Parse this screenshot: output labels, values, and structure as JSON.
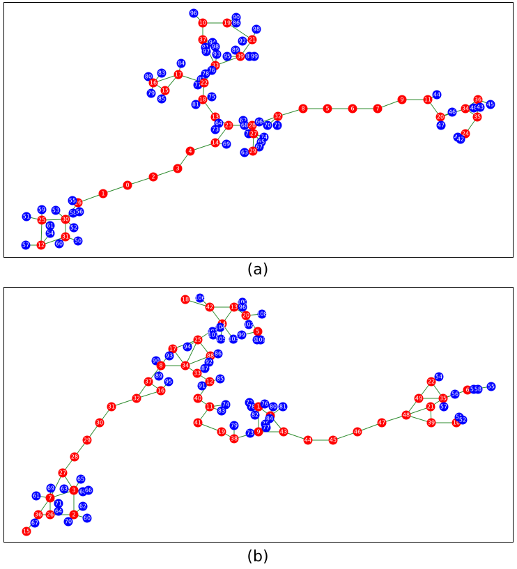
{
  "panels": [
    {
      "caption": "(a)",
      "nodes": [
        {
          "label": "96",
          "color": "blue"
        },
        {
          "label": "10",
          "color": "red"
        },
        {
          "label": "19",
          "color": "red"
        },
        {
          "label": "90",
          "color": "blue"
        },
        {
          "label": "86",
          "color": "blue"
        },
        {
          "label": "98",
          "color": "blue"
        },
        {
          "label": "37",
          "color": "red"
        },
        {
          "label": "21",
          "color": "red"
        },
        {
          "label": "92",
          "color": "blue"
        },
        {
          "label": "94",
          "color": "blue"
        },
        {
          "label": "91",
          "color": "blue"
        },
        {
          "label": "98",
          "color": "blue"
        },
        {
          "label": "97",
          "color": "blue"
        },
        {
          "label": "93",
          "color": "blue"
        },
        {
          "label": "89",
          "color": "blue"
        },
        {
          "label": "95",
          "color": "blue"
        },
        {
          "label": "39",
          "color": "red"
        },
        {
          "label": "88",
          "color": "blue"
        },
        {
          "label": "99",
          "color": "blue"
        },
        {
          "label": "33",
          "color": "red"
        },
        {
          "label": "76",
          "color": "blue"
        },
        {
          "label": "78",
          "color": "blue"
        },
        {
          "label": "84",
          "color": "blue"
        },
        {
          "label": "17",
          "color": "red"
        },
        {
          "label": "83",
          "color": "blue"
        },
        {
          "label": "80",
          "color": "blue"
        },
        {
          "label": "16",
          "color": "red"
        },
        {
          "label": "82",
          "color": "blue"
        },
        {
          "label": "77",
          "color": "blue"
        },
        {
          "label": "22",
          "color": "red"
        },
        {
          "label": "15",
          "color": "red"
        },
        {
          "label": "79",
          "color": "blue"
        },
        {
          "label": "85",
          "color": "blue"
        },
        {
          "label": "75",
          "color": "blue"
        },
        {
          "label": "18",
          "color": "red"
        },
        {
          "label": "81",
          "color": "blue"
        },
        {
          "label": "13",
          "color": "red"
        },
        {
          "label": "64",
          "color": "blue"
        },
        {
          "label": "23",
          "color": "red"
        },
        {
          "label": "62",
          "color": "blue"
        },
        {
          "label": "68",
          "color": "blue"
        },
        {
          "label": "28",
          "color": "red"
        },
        {
          "label": "66",
          "color": "blue"
        },
        {
          "label": "70",
          "color": "blue"
        },
        {
          "label": "32",
          "color": "red"
        },
        {
          "label": "71",
          "color": "blue"
        },
        {
          "label": "73",
          "color": "blue"
        },
        {
          "label": "72",
          "color": "blue"
        },
        {
          "label": "27",
          "color": "red"
        },
        {
          "label": "74",
          "color": "blue"
        },
        {
          "label": "65",
          "color": "blue"
        },
        {
          "label": "67",
          "color": "blue"
        },
        {
          "label": "63",
          "color": "blue"
        },
        {
          "label": "29",
          "color": "red"
        },
        {
          "label": "69",
          "color": "blue"
        },
        {
          "label": "14",
          "color": "red"
        },
        {
          "label": "4",
          "color": "red"
        },
        {
          "label": "3",
          "color": "red"
        },
        {
          "label": "2",
          "color": "red"
        },
        {
          "label": "0",
          "color": "red"
        },
        {
          "label": "1",
          "color": "red"
        },
        {
          "label": "26",
          "color": "red"
        },
        {
          "label": "55",
          "color": "blue"
        },
        {
          "label": "58",
          "color": "blue"
        },
        {
          "label": "56",
          "color": "blue"
        },
        {
          "label": "59",
          "color": "blue"
        },
        {
          "label": "53",
          "color": "blue"
        },
        {
          "label": "30",
          "color": "red"
        },
        {
          "label": "51",
          "color": "blue"
        },
        {
          "label": "25",
          "color": "red"
        },
        {
          "label": "61",
          "color": "blue"
        },
        {
          "label": "52",
          "color": "blue"
        },
        {
          "label": "54",
          "color": "blue"
        },
        {
          "label": "31",
          "color": "red"
        },
        {
          "label": "50",
          "color": "blue"
        },
        {
          "label": "60",
          "color": "blue"
        },
        {
          "label": "57",
          "color": "blue"
        },
        {
          "label": "12",
          "color": "red"
        },
        {
          "label": "8",
          "color": "red"
        },
        {
          "label": "5",
          "color": "red"
        },
        {
          "label": "6",
          "color": "red"
        },
        {
          "label": "7",
          "color": "red"
        },
        {
          "label": "9",
          "color": "red"
        },
        {
          "label": "11",
          "color": "red"
        },
        {
          "label": "44",
          "color": "blue"
        },
        {
          "label": "20",
          "color": "red"
        },
        {
          "label": "46",
          "color": "blue"
        },
        {
          "label": "47",
          "color": "blue"
        },
        {
          "label": "36",
          "color": "red"
        },
        {
          "label": "34",
          "color": "red"
        },
        {
          "label": "48",
          "color": "blue"
        },
        {
          "label": "43",
          "color": "blue"
        },
        {
          "label": "45",
          "color": "blue"
        },
        {
          "label": "35",
          "color": "red"
        },
        {
          "label": "24",
          "color": "red"
        },
        {
          "label": "40",
          "color": "blue"
        },
        {
          "label": "42",
          "color": "blue"
        }
      ]
    },
    {
      "caption": "(b)",
      "nodes": [
        {
          "label": "18",
          "color": "red"
        },
        {
          "label": "106",
          "color": "blue"
        },
        {
          "label": "42",
          "color": "red"
        },
        {
          "label": "13",
          "color": "red"
        },
        {
          "label": "100",
          "color": "blue"
        },
        {
          "label": "96",
          "color": "blue"
        },
        {
          "label": "20",
          "color": "red"
        },
        {
          "label": "108",
          "color": "blue"
        },
        {
          "label": "14",
          "color": "red"
        },
        {
          "label": "104",
          "color": "blue"
        },
        {
          "label": "101",
          "color": "blue"
        },
        {
          "label": "107",
          "color": "blue"
        },
        {
          "label": "105",
          "color": "blue"
        },
        {
          "label": "103",
          "color": "blue"
        },
        {
          "label": "102",
          "color": "blue"
        },
        {
          "label": "5",
          "color": "red"
        },
        {
          "label": "99",
          "color": "blue"
        },
        {
          "label": "98",
          "color": "blue"
        },
        {
          "label": "109",
          "color": "blue"
        },
        {
          "label": "25",
          "color": "red"
        },
        {
          "label": "17",
          "color": "red"
        },
        {
          "label": "94",
          "color": "blue"
        },
        {
          "label": "93",
          "color": "blue"
        },
        {
          "label": "88",
          "color": "red"
        },
        {
          "label": "86",
          "color": "blue"
        },
        {
          "label": "92",
          "color": "blue"
        },
        {
          "label": "90",
          "color": "blue"
        },
        {
          "label": "8",
          "color": "red"
        },
        {
          "label": "34",
          "color": "red"
        },
        {
          "label": "87",
          "color": "blue"
        },
        {
          "label": "89",
          "color": "blue"
        },
        {
          "label": "33",
          "color": "red"
        },
        {
          "label": "12",
          "color": "red"
        },
        {
          "label": "85",
          "color": "blue"
        },
        {
          "label": "95",
          "color": "blue"
        },
        {
          "label": "37",
          "color": "red"
        },
        {
          "label": "16",
          "color": "red"
        },
        {
          "label": "91",
          "color": "blue"
        },
        {
          "label": "32",
          "color": "red"
        },
        {
          "label": "40",
          "color": "red"
        },
        {
          "label": "31",
          "color": "red"
        },
        {
          "label": "11",
          "color": "red"
        },
        {
          "label": "74",
          "color": "blue"
        },
        {
          "label": "83",
          "color": "blue"
        },
        {
          "label": "30",
          "color": "red"
        },
        {
          "label": "41",
          "color": "red"
        },
        {
          "label": "79",
          "color": "blue"
        },
        {
          "label": "19",
          "color": "red"
        },
        {
          "label": "38",
          "color": "red"
        },
        {
          "label": "73",
          "color": "blue"
        },
        {
          "label": "9",
          "color": "red"
        },
        {
          "label": "29",
          "color": "red"
        },
        {
          "label": "72",
          "color": "blue"
        },
        {
          "label": "78",
          "color": "blue"
        },
        {
          "label": "1",
          "color": "red"
        },
        {
          "label": "76",
          "color": "blue"
        },
        {
          "label": "80",
          "color": "blue"
        },
        {
          "label": "81",
          "color": "blue"
        },
        {
          "label": "82",
          "color": "blue"
        },
        {
          "label": "4",
          "color": "red"
        },
        {
          "label": "84",
          "color": "blue"
        },
        {
          "label": "75",
          "color": "blue"
        },
        {
          "label": "77",
          "color": "blue"
        },
        {
          "label": "43",
          "color": "red"
        },
        {
          "label": "44",
          "color": "red"
        },
        {
          "label": "45",
          "color": "red"
        },
        {
          "label": "46",
          "color": "red"
        },
        {
          "label": "47",
          "color": "red"
        },
        {
          "label": "48",
          "color": "red"
        },
        {
          "label": "49",
          "color": "red"
        },
        {
          "label": "22",
          "color": "red"
        },
        {
          "label": "54",
          "color": "blue"
        },
        {
          "label": "35",
          "color": "red"
        },
        {
          "label": "56",
          "color": "blue"
        },
        {
          "label": "6",
          "color": "red"
        },
        {
          "label": "53",
          "color": "blue"
        },
        {
          "label": "58",
          "color": "blue"
        },
        {
          "label": "55",
          "color": "blue"
        },
        {
          "label": "21",
          "color": "red"
        },
        {
          "label": "57",
          "color": "blue"
        },
        {
          "label": "39",
          "color": "red"
        },
        {
          "label": "10",
          "color": "red"
        },
        {
          "label": "51",
          "color": "blue"
        },
        {
          "label": "52",
          "color": "blue"
        },
        {
          "label": "28",
          "color": "red"
        },
        {
          "label": "27",
          "color": "red"
        },
        {
          "label": "65",
          "color": "blue"
        },
        {
          "label": "69",
          "color": "blue"
        },
        {
          "label": "63",
          "color": "blue"
        },
        {
          "label": "3",
          "color": "red"
        },
        {
          "label": "68",
          "color": "blue"
        },
        {
          "label": "66",
          "color": "blue"
        },
        {
          "label": "61",
          "color": "blue"
        },
        {
          "label": "7",
          "color": "red"
        },
        {
          "label": "71",
          "color": "blue"
        },
        {
          "label": "62",
          "color": "blue"
        },
        {
          "label": "64",
          "color": "blue"
        },
        {
          "label": "36",
          "color": "red"
        },
        {
          "label": "26",
          "color": "red"
        },
        {
          "label": "2",
          "color": "red"
        },
        {
          "label": "60",
          "color": "blue"
        },
        {
          "label": "70",
          "color": "blue"
        },
        {
          "label": "67",
          "color": "blue"
        },
        {
          "label": "15",
          "color": "red"
        }
      ]
    }
  ]
}
